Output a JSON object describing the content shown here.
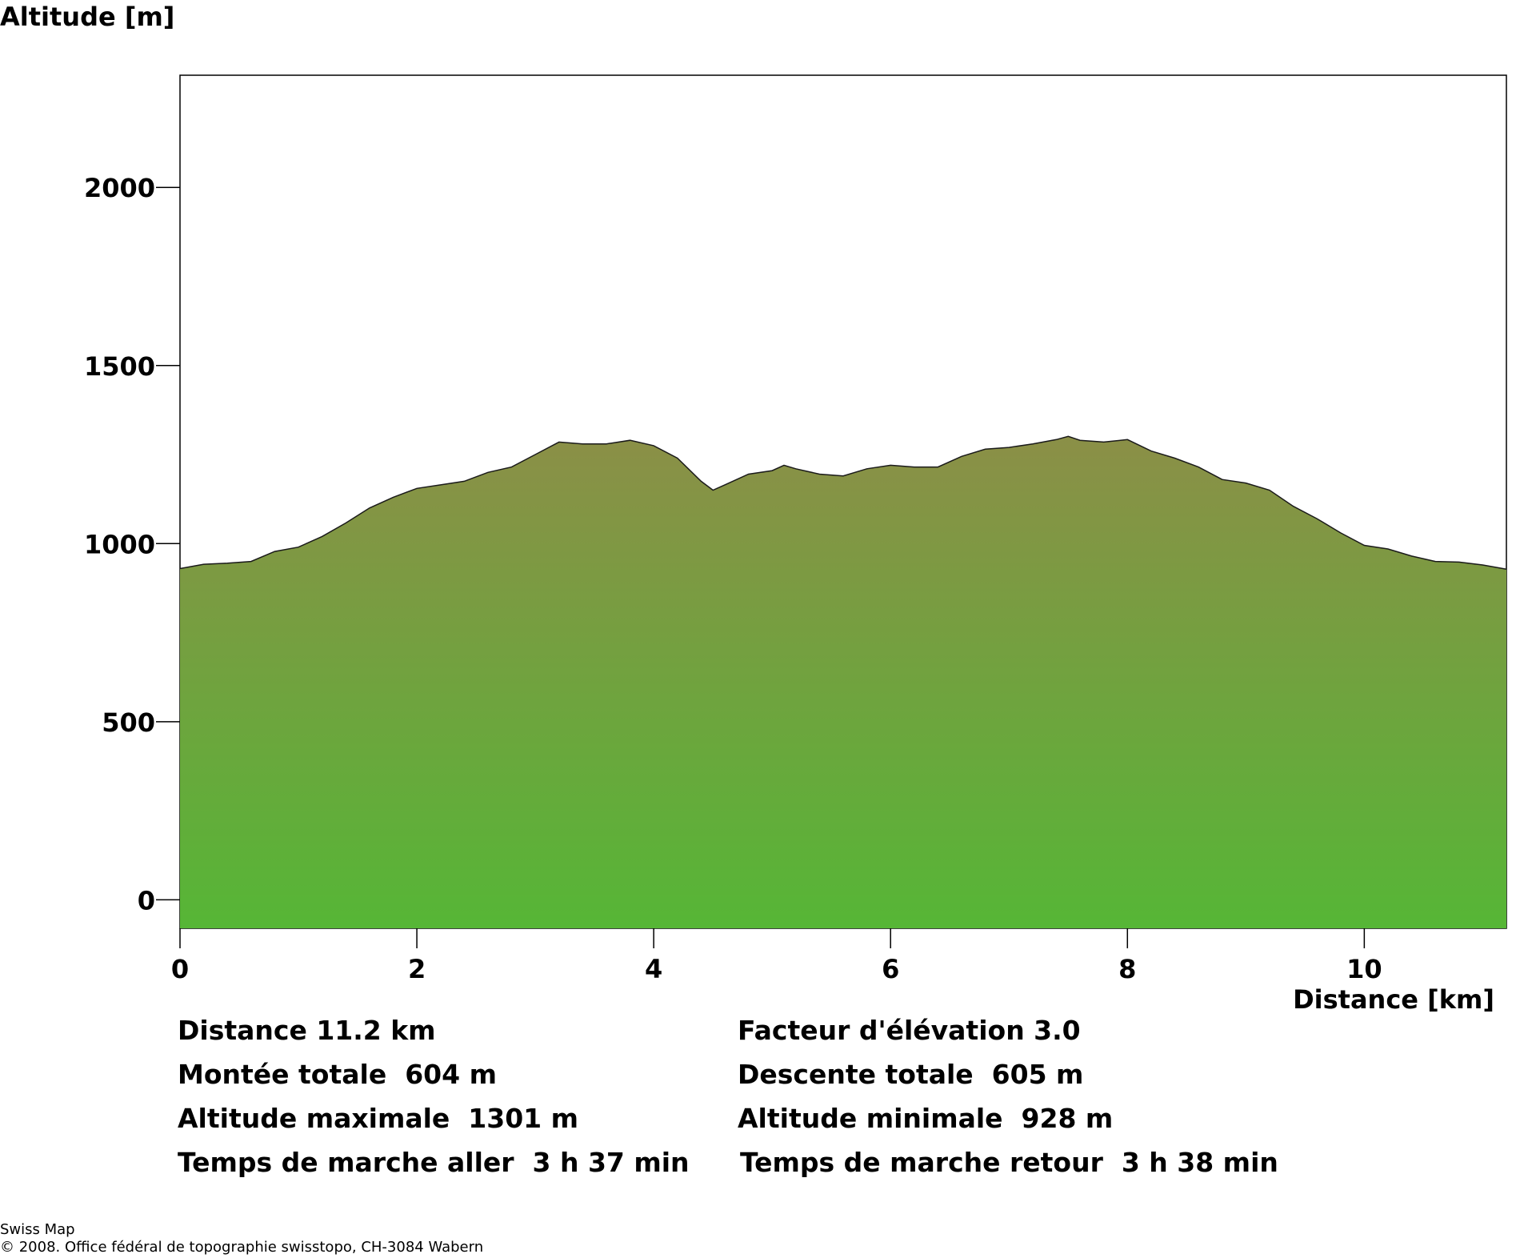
{
  "chart_data": {
    "type": "area",
    "title": "",
    "ylabel": "Altitude [m]",
    "xlabel": "Distance [km]",
    "xlim": [
      0,
      11.2
    ],
    "ylim": [
      -80,
      2315
    ],
    "x_ticks": [
      0,
      2,
      4,
      6,
      8,
      10
    ],
    "y_ticks": [
      0,
      500,
      1000,
      1500,
      2000
    ],
    "grid": false,
    "legend": "none",
    "fill_gradient": {
      "top": "#8b8f47",
      "bottom": "#56b636"
    },
    "line_color": "#1a1a1a",
    "series": [
      {
        "x": [
          0,
          0.2,
          0.4,
          0.6,
          0.8,
          1.0,
          1.2,
          1.4,
          1.6,
          1.8,
          2.0,
          2.2,
          2.4,
          2.6,
          2.8,
          3.0,
          3.2,
          3.4,
          3.6,
          3.8,
          4.0,
          4.2,
          4.4,
          4.5,
          4.6,
          4.8,
          5.0,
          5.1,
          5.2,
          5.4,
          5.6,
          5.8,
          6.0,
          6.2,
          6.4,
          6.6,
          6.8,
          7.0,
          7.2,
          7.4,
          7.5,
          7.6,
          7.8,
          8.0,
          8.2,
          8.4,
          8.6,
          8.8,
          9.0,
          9.2,
          9.4,
          9.6,
          9.8,
          10.0,
          10.2,
          10.4,
          10.6,
          10.8,
          11.0,
          11.2
        ],
        "y": [
          930,
          942,
          945,
          950,
          978,
          990,
          1020,
          1058,
          1100,
          1130,
          1155,
          1165,
          1175,
          1200,
          1215,
          1250,
          1285,
          1280,
          1280,
          1290,
          1275,
          1240,
          1175,
          1150,
          1165,
          1195,
          1205,
          1220,
          1210,
          1195,
          1190,
          1210,
          1220,
          1215,
          1215,
          1245,
          1265,
          1270,
          1280,
          1292,
          1301,
          1290,
          1285,
          1292,
          1260,
          1240,
          1215,
          1180,
          1170,
          1150,
          1105,
          1070,
          1030,
          995,
          985,
          965,
          950,
          948,
          940,
          928
        ]
      }
    ]
  },
  "stats": {
    "distance": "Distance 11.2 km",
    "elevation_factor": "Facteur d'élévation 3.0",
    "total_ascent": "Montée totale  604 m",
    "total_descent": "Descente totale  605 m",
    "max_altitude": "Altitude maximale  1301 m",
    "min_altitude": "Altitude minimale  928 m",
    "walk_time_out": "Temps de marche aller  3 h 37 min",
    "walk_time_return": "Temps de marche retour  3 h 38 min"
  },
  "credits": {
    "line1": "Swiss Map",
    "line2": "© 2008. Office fédéral de topographie swisstopo, CH-3084 Wabern"
  }
}
